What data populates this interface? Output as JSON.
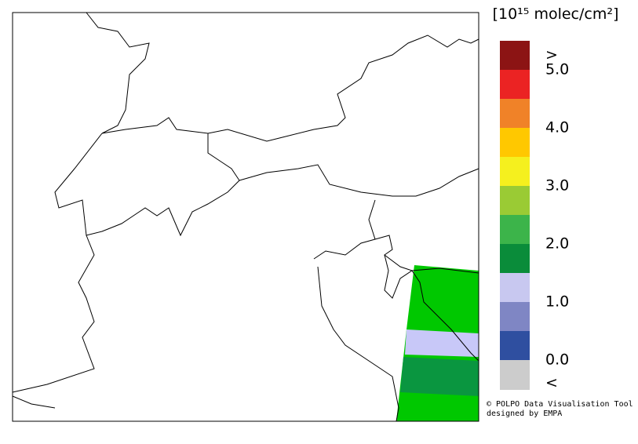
{
  "legend": {
    "title": "[10¹⁵ molec/cm²]",
    "range": [
      0,
      5
    ],
    "colors": [
      "#2f4fa0",
      "#7f86c4",
      "#c8c8f0",
      "#0a8c3a",
      "#3cb44a",
      "#9acb34",
      "#f5f01e",
      "#ffc800",
      "#f08228",
      "#eb2323"
    ],
    "over_color": "#8c1414",
    "under_color": "#cccccc",
    "over_label": ">",
    "under_label": "<",
    "ticks": [
      {
        "value": 0,
        "label": "0.0"
      },
      {
        "value": 1,
        "label": "1.0"
      },
      {
        "value": 2,
        "label": "2.0"
      },
      {
        "value": 3,
        "label": "3.0"
      },
      {
        "value": 4,
        "label": "4.0"
      },
      {
        "value": 5,
        "label": "5.0"
      }
    ]
  },
  "credit": {
    "line1": "© POLPO Data Visualisation Tool",
    "line2": "designed by EMPA"
  }
}
